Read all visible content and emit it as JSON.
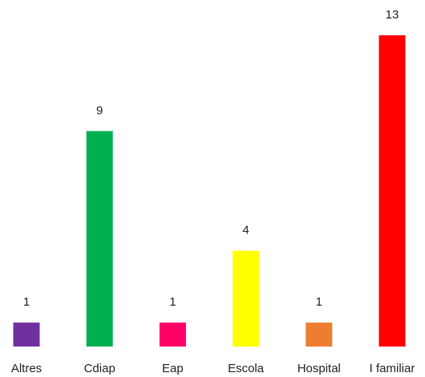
{
  "chart_data": {
    "type": "bar",
    "categories": [
      "Altres",
      "Cdiap",
      "Eap",
      "Escola",
      "Hospital",
      "I familiar"
    ],
    "values": [
      1,
      9,
      1,
      4,
      1,
      13
    ],
    "colors": [
      "#7030a0",
      "#00b050",
      "#ff0066",
      "#ffff00",
      "#ed7d31",
      "#ff0000"
    ]
  }
}
